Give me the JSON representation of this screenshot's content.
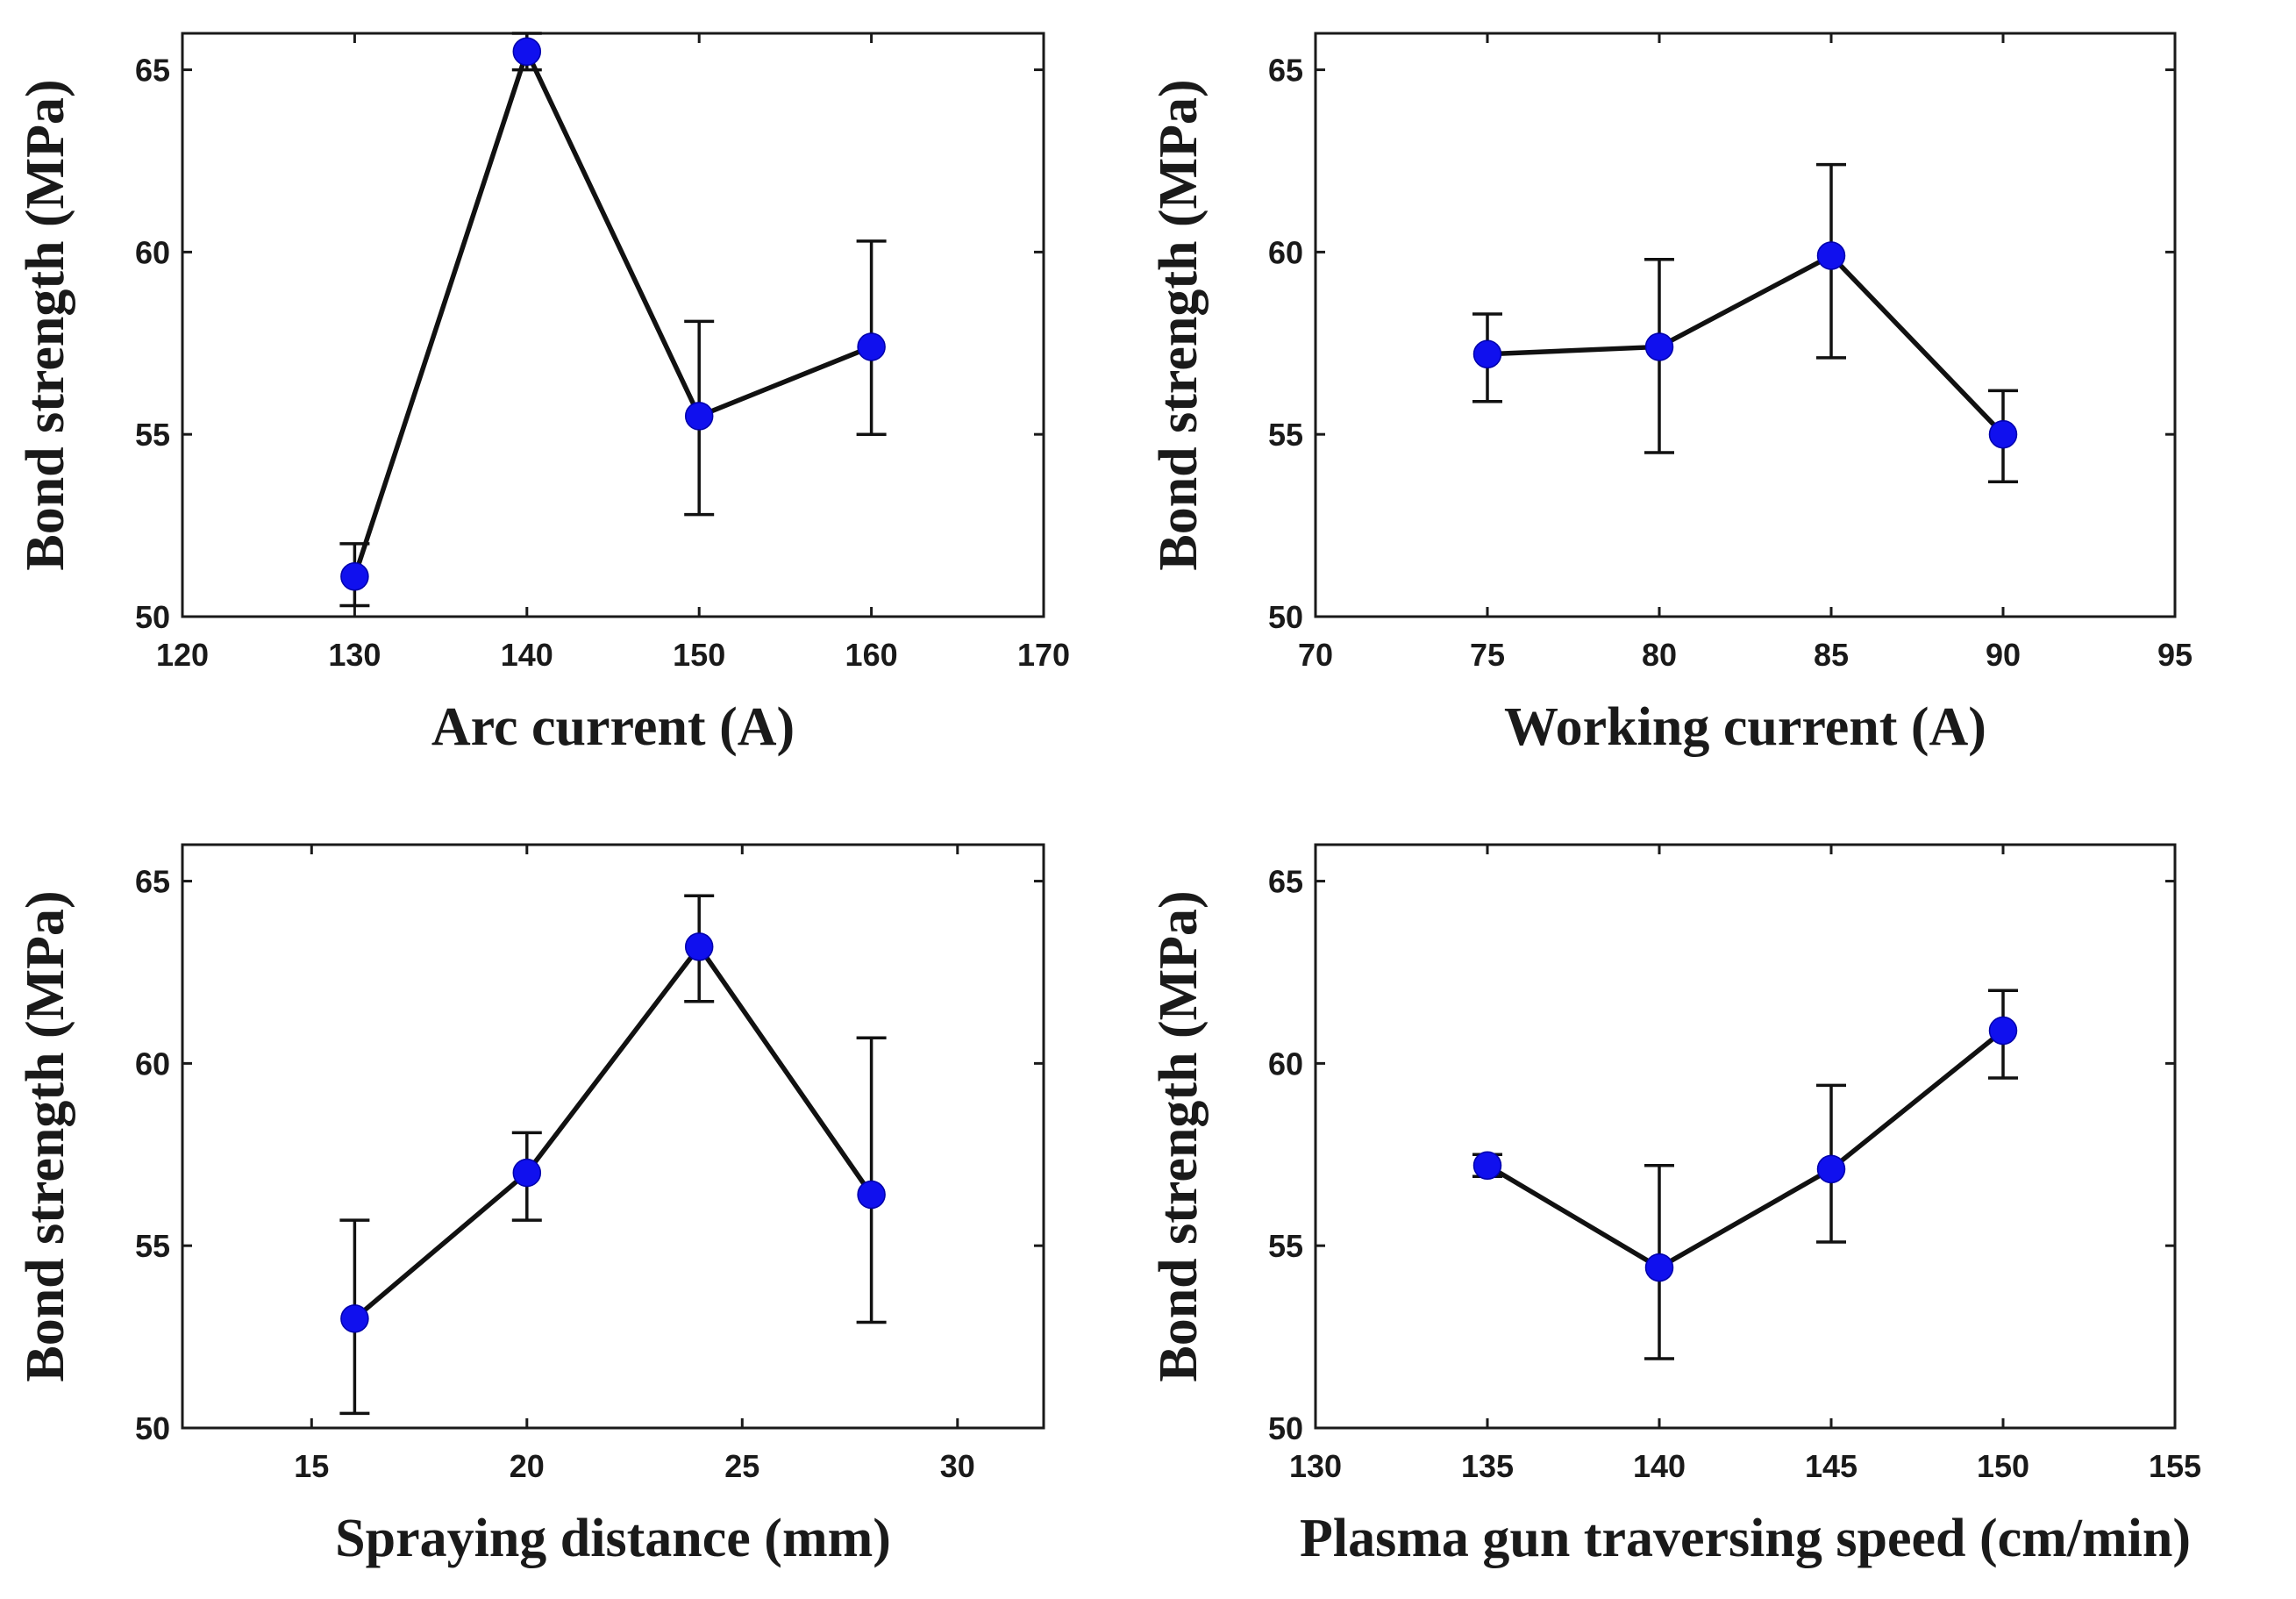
{
  "chart_data": [
    {
      "type": "line",
      "xlabel": "Arc current (A)",
      "ylabel": "Bond strength (MPa)",
      "xlim": [
        120,
        170
      ],
      "ylim": [
        50,
        66
      ],
      "xticks": [
        120,
        130,
        140,
        150,
        160,
        170
      ],
      "yticks": [
        50,
        55,
        60,
        65
      ],
      "x": [
        130,
        140,
        150,
        160
      ],
      "y": [
        51.1,
        65.5,
        55.5,
        57.4
      ],
      "err_low": [
        50.3,
        65.0,
        52.8,
        55.0
      ],
      "err_high": [
        52.0,
        66.0,
        58.1,
        60.3
      ]
    },
    {
      "type": "line",
      "xlabel": "Working current (A)",
      "ylabel": "Bond strength (MPa)",
      "xlim": [
        70,
        95
      ],
      "ylim": [
        50,
        66
      ],
      "xticks": [
        70,
        75,
        80,
        85,
        90,
        95
      ],
      "yticks": [
        50,
        55,
        60,
        65
      ],
      "x": [
        75,
        80,
        85,
        90
      ],
      "y": [
        57.2,
        57.4,
        59.9,
        55.0
      ],
      "err_low": [
        55.9,
        54.5,
        57.1,
        53.7
      ],
      "err_high": [
        58.3,
        59.8,
        62.4,
        56.2
      ]
    },
    {
      "type": "line",
      "xlabel": "Spraying distance (mm)",
      "ylabel": "Bond strength (MPa)",
      "xlim": [
        12,
        32
      ],
      "ylim": [
        50,
        66
      ],
      "xticks": [
        15,
        20,
        25,
        30
      ],
      "yticks": [
        50,
        55,
        60,
        65
      ],
      "x": [
        16,
        20,
        24,
        28
      ],
      "y": [
        53.0,
        57.0,
        63.2,
        56.4
      ],
      "err_low": [
        50.4,
        55.7,
        61.7,
        52.9
      ],
      "err_high": [
        55.7,
        58.1,
        64.6,
        60.7
      ]
    },
    {
      "type": "line",
      "xlabel": "Plasma gun traversing speed (cm/min)",
      "ylabel": "Bond strength (MPa)",
      "xlim": [
        130,
        155
      ],
      "ylim": [
        50,
        66
      ],
      "xticks": [
        130,
        135,
        140,
        145,
        150,
        155
      ],
      "yticks": [
        50,
        55,
        60,
        65
      ],
      "x": [
        135,
        140,
        145,
        150
      ],
      "y": [
        57.2,
        54.4,
        57.1,
        60.9
      ],
      "err_low": [
        56.9,
        51.9,
        55.1,
        59.6
      ],
      "err_high": [
        57.5,
        57.2,
        59.4,
        62.0
      ]
    }
  ],
  "colors": {
    "marker": "#1010ee",
    "line": "#111111",
    "axis": "#1a1a1a"
  }
}
